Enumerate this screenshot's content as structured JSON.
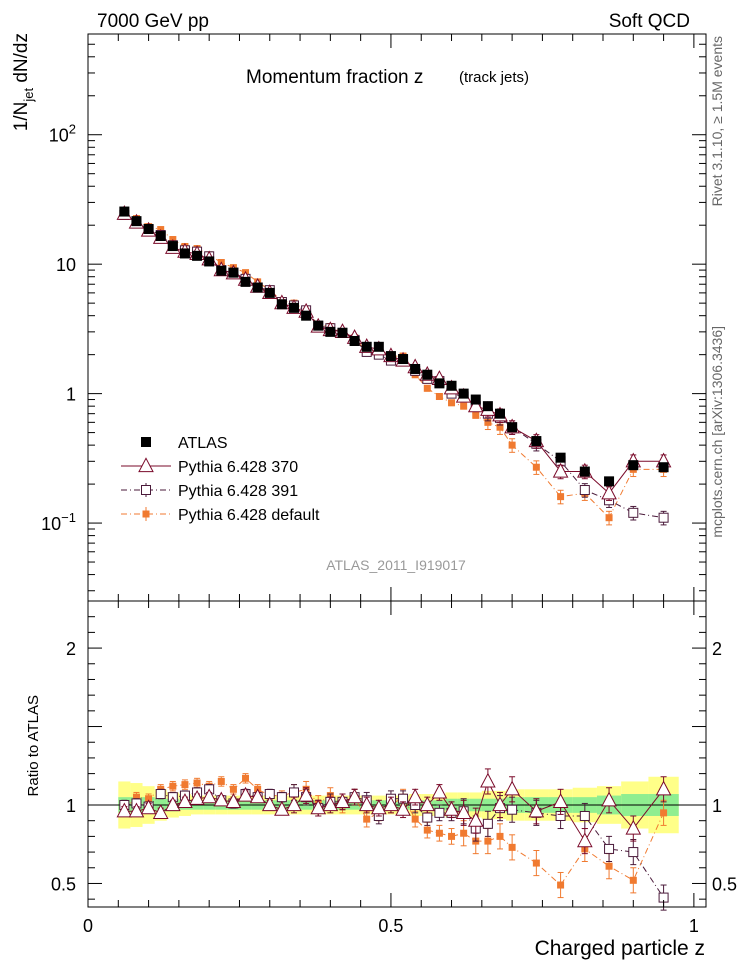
{
  "header": {
    "left": "7000 GeV pp",
    "right": "Soft QCD"
  },
  "side_labels": {
    "rivet": "Rivet 3.1.10, ≥ 1.5M events",
    "source": "mcplots.cern.ch [arXiv:1306.3436]"
  },
  "main_plot": {
    "title": "Momentum fraction z",
    "subtitle": "(track jets)",
    "watermark": "ATLAS_2011_I919017",
    "ylabel": "1/N_jet dN/dz"
  },
  "ratio_plot": {
    "ylabel": "Ratio to ATLAS"
  },
  "xlabel": "Charged particle z",
  "legend": [
    {
      "label": "ATLAS"
    },
    {
      "label": "Pythia 6.428 370"
    },
    {
      "label": "Pythia 6.428 391"
    },
    {
      "label": "Pythia 6.428 default"
    }
  ],
  "colors": {
    "atlas": "#000000",
    "p370": "#7a0a2a",
    "p391": "#4a1a3a",
    "pdef": "#f07a30",
    "band_inner": "#90ee90",
    "band_outer": "#ffff88"
  },
  "chart_data": [
    {
      "type": "scatter",
      "title": "Momentum fraction z",
      "xlabel": "Charged particle z",
      "ylabel": "1/N_jet dN/dz",
      "yscale": "log",
      "xlim": [
        0,
        1.02
      ],
      "ylim": [
        0.025,
        600
      ],
      "x_ticks": [
        "0",
        "0.5",
        "1"
      ],
      "y_ticks": [
        "10^-1",
        "1",
        "10",
        "10^2"
      ],
      "x": [
        0.06,
        0.08,
        0.1,
        0.12,
        0.14,
        0.16,
        0.18,
        0.2,
        0.22,
        0.24,
        0.26,
        0.28,
        0.3,
        0.32,
        0.34,
        0.36,
        0.38,
        0.4,
        0.42,
        0.44,
        0.46,
        0.48,
        0.5,
        0.52,
        0.54,
        0.56,
        0.58,
        0.6,
        0.62,
        0.64,
        0.66,
        0.68,
        0.7,
        0.74,
        0.78,
        0.82,
        0.86,
        0.9,
        0.95
      ],
      "series": [
        {
          "name": "ATLAS",
          "values": [
            25.5,
            21.5,
            18.7,
            16.5,
            13.8,
            12.1,
            11.6,
            10.5,
            8.9,
            8.6,
            7.3,
            6.6,
            6.0,
            4.9,
            4.6,
            4.0,
            3.35,
            3.0,
            2.95,
            2.55,
            2.3,
            2.3,
            1.95,
            1.85,
            1.55,
            1.4,
            1.2,
            1.15,
            1.0,
            0.9,
            0.8,
            0.7,
            0.55,
            0.43,
            0.32,
            0.25,
            0.21,
            0.28,
            0.27
          ]
        },
        {
          "name": "Pythia 6.428 370",
          "values": [
            24.5,
            21.0,
            18.2,
            16.0,
            13.4,
            12.5,
            12.0,
            10.9,
            9.0,
            8.5,
            7.6,
            6.7,
            6.0,
            5.0,
            4.6,
            4.3,
            3.3,
            3.1,
            3.0,
            2.7,
            2.3,
            2.2,
            1.95,
            1.8,
            1.6,
            1.4,
            1.3,
            1.1,
            0.95,
            0.8,
            0.75,
            0.68,
            0.55,
            0.43,
            0.25,
            0.25,
            0.17,
            0.3,
            0.3
          ]
        },
        {
          "name": "Pythia 6.428 391",
          "values": [
            24.0,
            21.0,
            18.5,
            16.8,
            14.0,
            12.8,
            12.5,
            11.5,
            9.0,
            8.6,
            7.7,
            6.6,
            6.3,
            5.1,
            4.8,
            4.4,
            3.35,
            3.2,
            2.95,
            2.6,
            2.1,
            2.0,
            1.8,
            1.8,
            1.5,
            1.3,
            1.25,
            1.0,
            0.95,
            0.8,
            0.7,
            0.65,
            0.55,
            0.41,
            0.3,
            0.18,
            0.15,
            0.12,
            0.11
          ]
        },
        {
          "name": "Pythia 6.428 default",
          "values": [
            24.5,
            22.5,
            19.5,
            18.5,
            15.5,
            13.7,
            13.2,
            11.8,
            10.3,
            9.4,
            8.6,
            7.3,
            6.3,
            5.2,
            5.0,
            4.4,
            3.4,
            3.3,
            2.95,
            2.7,
            2.1,
            2.2,
            1.95,
            1.95,
            1.4,
            1.1,
            0.95,
            0.85,
            0.8,
            0.68,
            0.6,
            0.55,
            0.4,
            0.27,
            0.16,
            0.17,
            0.11,
            0.26,
            0.26
          ]
        }
      ]
    },
    {
      "type": "scatter",
      "title": "",
      "xlabel": "Charged particle z",
      "ylabel": "Ratio to ATLAS",
      "xlim": [
        0,
        1.02
      ],
      "ylim": [
        0.35,
        2.3
      ],
      "y_ticks": [
        "0.5",
        "1",
        "2"
      ],
      "band": {
        "inner": [
          0.05,
          0.05,
          0.05,
          0.04,
          0.04,
          0.03,
          0.03,
          0.03,
          0.03,
          0.03,
          0.03,
          0.03,
          0.03,
          0.03,
          0.03,
          0.03,
          0.03,
          0.03,
          0.03,
          0.03,
          0.03,
          0.03,
          0.03,
          0.03,
          0.03,
          0.03,
          0.03,
          0.04,
          0.04,
          0.04,
          0.04,
          0.04,
          0.05,
          0.05,
          0.05,
          0.05,
          0.06,
          0.07,
          0.07
        ],
        "outer": [
          0.15,
          0.14,
          0.12,
          0.1,
          0.08,
          0.07,
          0.06,
          0.06,
          0.06,
          0.06,
          0.06,
          0.06,
          0.06,
          0.06,
          0.06,
          0.06,
          0.06,
          0.06,
          0.06,
          0.06,
          0.06,
          0.06,
          0.06,
          0.06,
          0.07,
          0.07,
          0.07,
          0.08,
          0.08,
          0.08,
          0.09,
          0.09,
          0.1,
          0.1,
          0.1,
          0.11,
          0.12,
          0.15,
          0.18
        ]
      },
      "series": [
        {
          "name": "Pythia 6.428 370",
          "values": [
            0.96,
            0.96,
            0.98,
            0.95,
            1.0,
            1.02,
            1.04,
            1.05,
            1.03,
            1.02,
            1.06,
            1.05,
            1.0,
            0.97,
            1.0,
            1.06,
            0.98,
            1.0,
            1.02,
            1.05,
            1.0,
            0.98,
            1.0,
            0.97,
            1.05,
            1.0,
            1.08,
            0.97,
            0.95,
            0.9,
            1.15,
            1.0,
            1.1,
            0.96,
            1.02,
            0.77,
            1.03,
            0.85,
            1.1
          ]
        },
        {
          "name": "Pythia 6.428 391",
          "values": [
            1.0,
            1.01,
            0.99,
            1.07,
            1.05,
            1.06,
            1.08,
            1.1,
            1.03,
            1.01,
            1.07,
            1.05,
            1.07,
            1.05,
            1.08,
            1.05,
            0.98,
            1.02,
            1.02,
            1.05,
            1.03,
            0.93,
            1.04,
            1.04,
            1.0,
            0.92,
            0.95,
            0.95,
            0.96,
            0.85,
            0.88,
            0.98,
            0.97,
            0.95,
            0.93,
            0.93,
            0.72,
            0.7,
            0.41
          ]
        },
        {
          "name": "Pythia 6.428 default",
          "values": [
            0.97,
            1.05,
            1.04,
            1.1,
            1.12,
            1.13,
            1.14,
            1.12,
            1.15,
            1.1,
            1.17,
            1.1,
            1.06,
            1.06,
            1.08,
            1.1,
            1.01,
            1.06,
            1.0,
            1.05,
            0.91,
            0.95,
            1.0,
            1.05,
            0.91,
            0.84,
            0.82,
            0.8,
            0.82,
            0.77,
            0.77,
            0.8,
            0.73,
            0.63,
            0.49,
            0.72,
            0.61,
            0.52,
            0.95
          ]
        }
      ]
    }
  ]
}
